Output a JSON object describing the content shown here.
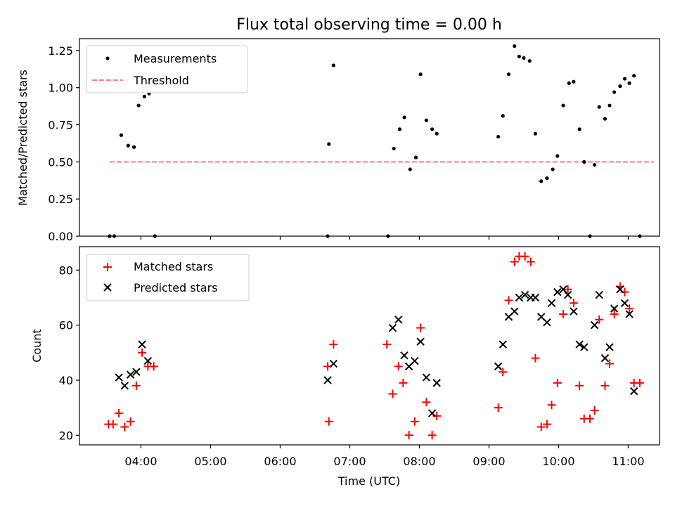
{
  "title": "Flux total observing time = 0.00 h",
  "colors": {
    "measurement": "#000000",
    "threshold": "#ff7f7f",
    "matched": "#ff0000",
    "predicted": "#000000"
  },
  "chart_data": [
    {
      "type": "scatter",
      "title": "Flux total observing time = 0.00 h",
      "xlabel": "",
      "ylabel": "Matched/Predicted stars",
      "ylim": [
        0,
        1.33
      ],
      "yticks": [
        "0.00",
        "0.25",
        "0.50",
        "0.75",
        "1.00",
        "1.25"
      ],
      "legend": [
        "Measurements",
        "Threshold"
      ],
      "legend_position": "top-left",
      "threshold": {
        "name": "Threshold",
        "y": 0.5,
        "x": [
          "03:33",
          "11:22"
        ]
      },
      "series": [
        {
          "name": "Measurements",
          "points": [
            [
              "03:33",
              0.0
            ],
            [
              "03:37",
              0.0
            ],
            [
              "03:43",
              0.68
            ],
            [
              "03:49",
              0.61
            ],
            [
              "03:54",
              0.6
            ],
            [
              "03:58",
              0.88
            ],
            [
              "04:03",
              0.94
            ],
            [
              "04:07",
              0.96
            ],
            [
              "04:12",
              0.0
            ],
            [
              "06:41",
              0.0
            ],
            [
              "06:42",
              0.62
            ],
            [
              "06:46",
              1.15
            ],
            [
              "07:33",
              0.0
            ],
            [
              "07:38",
              0.59
            ],
            [
              "07:43",
              0.72
            ],
            [
              "07:47",
              0.8
            ],
            [
              "07:52",
              0.45
            ],
            [
              "07:57",
              0.53
            ],
            [
              "08:01",
              1.09
            ],
            [
              "08:06",
              0.78
            ],
            [
              "08:11",
              0.72
            ],
            [
              "08:15",
              0.69
            ],
            [
              "09:08",
              0.67
            ],
            [
              "09:12",
              0.81
            ],
            [
              "09:17",
              1.09
            ],
            [
              "09:22",
              1.28
            ],
            [
              "09:26",
              1.21
            ],
            [
              "09:30",
              1.2
            ],
            [
              "09:35",
              1.18
            ],
            [
              "09:40",
              0.69
            ],
            [
              "09:45",
              0.37
            ],
            [
              "09:50",
              0.39
            ],
            [
              "09:55",
              0.45
            ],
            [
              "09:59",
              0.54
            ],
            [
              "10:04",
              0.88
            ],
            [
              "10:09",
              1.03
            ],
            [
              "10:13",
              1.04
            ],
            [
              "10:18",
              0.72
            ],
            [
              "10:22",
              0.5
            ],
            [
              "10:27",
              0.0
            ],
            [
              "10:31",
              0.48
            ],
            [
              "10:35",
              0.87
            ],
            [
              "10:40",
              0.79
            ],
            [
              "10:44",
              0.88
            ],
            [
              "10:48",
              0.97
            ],
            [
              "10:53",
              1.01
            ],
            [
              "10:57",
              1.06
            ],
            [
              "11:01",
              1.03
            ],
            [
              "11:05",
              1.08
            ],
            [
              "11:10",
              0.0
            ]
          ]
        }
      ]
    },
    {
      "type": "scatter",
      "title": "",
      "xlabel": "Time (UTC)",
      "ylabel": "Count",
      "xlim": [
        "03:07",
        "11:27"
      ],
      "xticks": [
        "04:00",
        "05:00",
        "06:00",
        "07:00",
        "08:00",
        "09:00",
        "10:00",
        "11:00"
      ],
      "ylim": [
        16.5,
        88.5
      ],
      "yticks": [
        "20",
        "40",
        "60",
        "80"
      ],
      "legend": [
        "Matched stars",
        "Predicted stars"
      ],
      "legend_position": "top-left",
      "series": [
        {
          "name": "Matched stars",
          "points": [
            [
              "03:32",
              24
            ],
            [
              "03:36",
              24
            ],
            [
              "03:41",
              28
            ],
            [
              "03:46",
              23
            ],
            [
              "03:51",
              25
            ],
            [
              "03:56",
              38
            ],
            [
              "04:01",
              50
            ],
            [
              "04:06",
              45
            ],
            [
              "04:11",
              45
            ],
            [
              "06:41",
              45
            ],
            [
              "06:42",
              25
            ],
            [
              "06:46",
              53
            ],
            [
              "07:32",
              53
            ],
            [
              "07:37",
              35
            ],
            [
              "07:42",
              45
            ],
            [
              "07:46",
              39
            ],
            [
              "07:51",
              20
            ],
            [
              "07:56",
              25
            ],
            [
              "08:01",
              59
            ],
            [
              "08:06",
              32
            ],
            [
              "08:11",
              20
            ],
            [
              "08:15",
              27
            ],
            [
              "09:08",
              30
            ],
            [
              "09:12",
              43
            ],
            [
              "09:17",
              69
            ],
            [
              "09:22",
              83
            ],
            [
              "09:26",
              85
            ],
            [
              "09:31",
              85
            ],
            [
              "09:36",
              83
            ],
            [
              "09:40",
              48
            ],
            [
              "09:45",
              23
            ],
            [
              "09:50",
              24
            ],
            [
              "09:54",
              31
            ],
            [
              "09:59",
              39
            ],
            [
              "10:04",
              64
            ],
            [
              "10:08",
              73
            ],
            [
              "10:13",
              68
            ],
            [
              "10:18",
              38
            ],
            [
              "10:22",
              26
            ],
            [
              "10:27",
              26
            ],
            [
              "10:31",
              29
            ],
            [
              "10:35",
              62
            ],
            [
              "10:40",
              38
            ],
            [
              "10:44",
              46
            ],
            [
              "10:48",
              64
            ],
            [
              "10:53",
              74
            ],
            [
              "10:57",
              72
            ],
            [
              "11:01",
              66
            ],
            [
              "11:05",
              39
            ],
            [
              "11:10",
              39
            ]
          ]
        },
        {
          "name": "Predicted stars",
          "points": [
            [
              "03:41",
              41
            ],
            [
              "03:46",
              38
            ],
            [
              "03:51",
              42
            ],
            [
              "03:56",
              43
            ],
            [
              "04:01",
              53
            ],
            [
              "04:06",
              47
            ],
            [
              "06:41",
              40
            ],
            [
              "06:46",
              46
            ],
            [
              "07:37",
              59
            ],
            [
              "07:42",
              62
            ],
            [
              "07:47",
              49
            ],
            [
              "07:51",
              45
            ],
            [
              "07:56",
              47
            ],
            [
              "08:01",
              54
            ],
            [
              "08:06",
              41
            ],
            [
              "08:11",
              28
            ],
            [
              "08:15",
              39
            ],
            [
              "09:08",
              45
            ],
            [
              "09:12",
              53
            ],
            [
              "09:17",
              63
            ],
            [
              "09:22",
              65
            ],
            [
              "09:26",
              70
            ],
            [
              "09:31",
              71
            ],
            [
              "09:36",
              70
            ],
            [
              "09:40",
              70
            ],
            [
              "09:45",
              63
            ],
            [
              "09:50",
              61
            ],
            [
              "09:54",
              68
            ],
            [
              "09:59",
              72
            ],
            [
              "10:04",
              73
            ],
            [
              "10:08",
              71
            ],
            [
              "10:13",
              65
            ],
            [
              "10:18",
              53
            ],
            [
              "10:22",
              52
            ],
            [
              "10:31",
              60
            ],
            [
              "10:35",
              71
            ],
            [
              "10:40",
              48
            ],
            [
              "10:44",
              52
            ],
            [
              "10:48",
              66
            ],
            [
              "10:53",
              73
            ],
            [
              "10:57",
              68
            ],
            [
              "11:01",
              64
            ],
            [
              "11:05",
              36
            ]
          ]
        }
      ]
    }
  ]
}
